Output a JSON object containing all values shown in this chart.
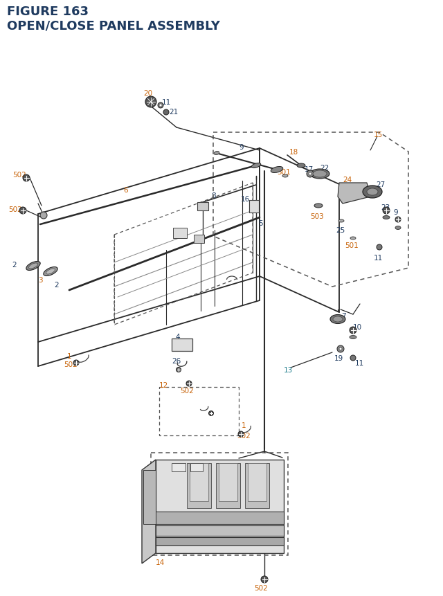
{
  "title_line1": "FIGURE 163",
  "title_line2": "OPEN/CLOSE PANEL ASSEMBLY",
  "title_color": "#1e3a5f",
  "title_fontsize": 12.5,
  "bg_color": "#ffffff",
  "oc": "#c8640a",
  "bc": "#1e3a5f",
  "tc": "#1a7a8a",
  "lc": "#2a2a2a",
  "dc": "#555555",
  "pc": "#444444",
  "gc": "#888888"
}
